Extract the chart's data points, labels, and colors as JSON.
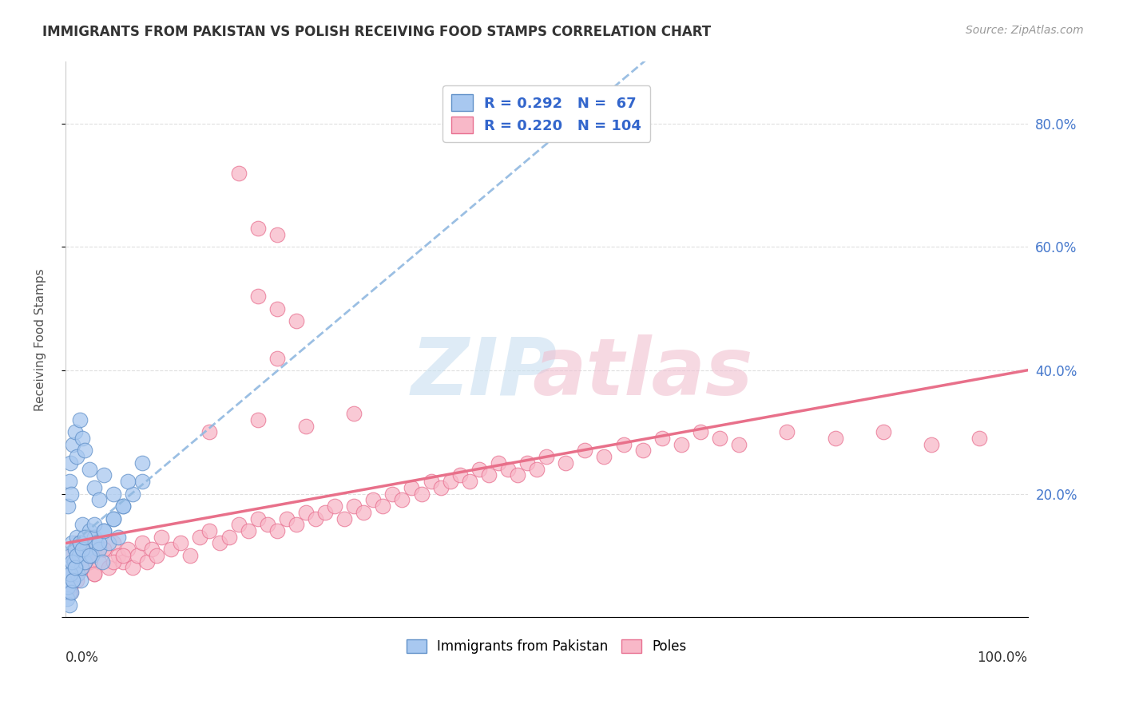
{
  "title": "IMMIGRANTS FROM PAKISTAN VS POLISH RECEIVING FOOD STAMPS CORRELATION CHART",
  "source": "Source: ZipAtlas.com",
  "ylabel": "Receiving Food Stamps",
  "xlim": [
    0.0,
    1.0
  ],
  "ylim": [
    0.0,
    0.9
  ],
  "ytick_vals": [
    0.0,
    0.2,
    0.4,
    0.6,
    0.8
  ],
  "ytick_labels": [
    "",
    "20.0%",
    "40.0%",
    "60.0%",
    "80.0%"
  ],
  "color_pakistan_fill": "#a8c8f0",
  "color_pakistan_edge": "#6090c8",
  "color_poland_fill": "#f8b8c8",
  "color_poland_edge": "#e87090",
  "color_line_pakistan": "#90b8e0",
  "color_line_poland": "#e8708a",
  "background_color": "#ffffff",
  "grid_color": "#d8d8d8",
  "legend_r1": "R = 0.292",
  "legend_n1": "N =  67",
  "legend_r2": "R = 0.220",
  "legend_n2": "N = 104",
  "legend_text_color": "#3366cc",
  "pakistan_x": [
    0.002,
    0.003,
    0.004,
    0.005,
    0.006,
    0.007,
    0.008,
    0.009,
    0.01,
    0.011,
    0.012,
    0.013,
    0.014,
    0.015,
    0.016,
    0.017,
    0.018,
    0.02,
    0.022,
    0.025,
    0.028,
    0.03,
    0.032,
    0.035,
    0.038,
    0.04,
    0.045,
    0.05,
    0.055,
    0.06,
    0.002,
    0.003,
    0.004,
    0.005,
    0.006,
    0.007,
    0.008,
    0.01,
    0.012,
    0.015,
    0.018,
    0.02,
    0.025,
    0.03,
    0.035,
    0.04,
    0.05,
    0.06,
    0.07,
    0.08,
    0.003,
    0.004,
    0.005,
    0.006,
    0.008,
    0.01,
    0.012,
    0.015,
    0.018,
    0.02,
    0.025,
    0.03,
    0.035,
    0.04,
    0.05,
    0.065,
    0.08
  ],
  "pakistan_y": [
    0.05,
    0.08,
    0.04,
    0.1,
    0.07,
    0.12,
    0.06,
    0.09,
    0.11,
    0.08,
    0.13,
    0.07,
    0.1,
    0.12,
    0.06,
    0.08,
    0.15,
    0.09,
    0.11,
    0.14,
    0.1,
    0.13,
    0.12,
    0.11,
    0.09,
    0.14,
    0.12,
    0.16,
    0.13,
    0.18,
    0.03,
    0.05,
    0.02,
    0.07,
    0.04,
    0.09,
    0.06,
    0.08,
    0.1,
    0.12,
    0.11,
    0.13,
    0.1,
    0.15,
    0.12,
    0.14,
    0.16,
    0.18,
    0.2,
    0.22,
    0.18,
    0.22,
    0.25,
    0.2,
    0.28,
    0.3,
    0.26,
    0.32,
    0.29,
    0.27,
    0.24,
    0.21,
    0.19,
    0.23,
    0.2,
    0.22,
    0.25
  ],
  "poland_x": [
    0.002,
    0.004,
    0.006,
    0.008,
    0.01,
    0.012,
    0.015,
    0.018,
    0.02,
    0.025,
    0.03,
    0.035,
    0.04,
    0.045,
    0.05,
    0.055,
    0.06,
    0.065,
    0.07,
    0.075,
    0.08,
    0.085,
    0.09,
    0.095,
    0.1,
    0.11,
    0.12,
    0.13,
    0.14,
    0.15,
    0.16,
    0.17,
    0.18,
    0.19,
    0.2,
    0.21,
    0.22,
    0.23,
    0.24,
    0.25,
    0.26,
    0.27,
    0.28,
    0.29,
    0.3,
    0.31,
    0.32,
    0.33,
    0.34,
    0.35,
    0.36,
    0.37,
    0.38,
    0.39,
    0.4,
    0.41,
    0.42,
    0.43,
    0.44,
    0.45,
    0.46,
    0.47,
    0.48,
    0.49,
    0.5,
    0.52,
    0.54,
    0.56,
    0.58,
    0.6,
    0.62,
    0.64,
    0.66,
    0.68,
    0.7,
    0.75,
    0.8,
    0.85,
    0.9,
    0.95,
    0.003,
    0.005,
    0.007,
    0.01,
    0.013,
    0.015,
    0.018,
    0.02,
    0.025,
    0.03,
    0.005,
    0.008,
    0.012,
    0.016,
    0.02,
    0.025,
    0.03,
    0.04,
    0.05,
    0.06,
    0.15,
    0.2,
    0.25,
    0.3
  ],
  "poland_y": [
    0.08,
    0.06,
    0.1,
    0.07,
    0.09,
    0.12,
    0.08,
    0.11,
    0.1,
    0.13,
    0.07,
    0.09,
    0.11,
    0.08,
    0.12,
    0.1,
    0.09,
    0.11,
    0.08,
    0.1,
    0.12,
    0.09,
    0.11,
    0.1,
    0.13,
    0.11,
    0.12,
    0.1,
    0.13,
    0.14,
    0.12,
    0.13,
    0.15,
    0.14,
    0.16,
    0.15,
    0.14,
    0.16,
    0.15,
    0.17,
    0.16,
    0.17,
    0.18,
    0.16,
    0.18,
    0.17,
    0.19,
    0.18,
    0.2,
    0.19,
    0.21,
    0.2,
    0.22,
    0.21,
    0.22,
    0.23,
    0.22,
    0.24,
    0.23,
    0.25,
    0.24,
    0.23,
    0.25,
    0.24,
    0.26,
    0.25,
    0.27,
    0.26,
    0.28,
    0.27,
    0.29,
    0.28,
    0.3,
    0.29,
    0.28,
    0.3,
    0.29,
    0.3,
    0.28,
    0.29,
    0.05,
    0.04,
    0.06,
    0.08,
    0.07,
    0.09,
    0.08,
    0.1,
    0.09,
    0.11,
    0.05,
    0.07,
    0.06,
    0.08,
    0.09,
    0.1,
    0.07,
    0.11,
    0.09,
    0.1,
    0.3,
    0.32,
    0.31,
    0.33
  ],
  "poland_outliers_x": [
    0.18,
    0.2,
    0.22,
    0.2,
    0.22,
    0.24,
    0.22
  ],
  "poland_outliers_y": [
    0.72,
    0.63,
    0.62,
    0.52,
    0.5,
    0.48,
    0.42
  ]
}
